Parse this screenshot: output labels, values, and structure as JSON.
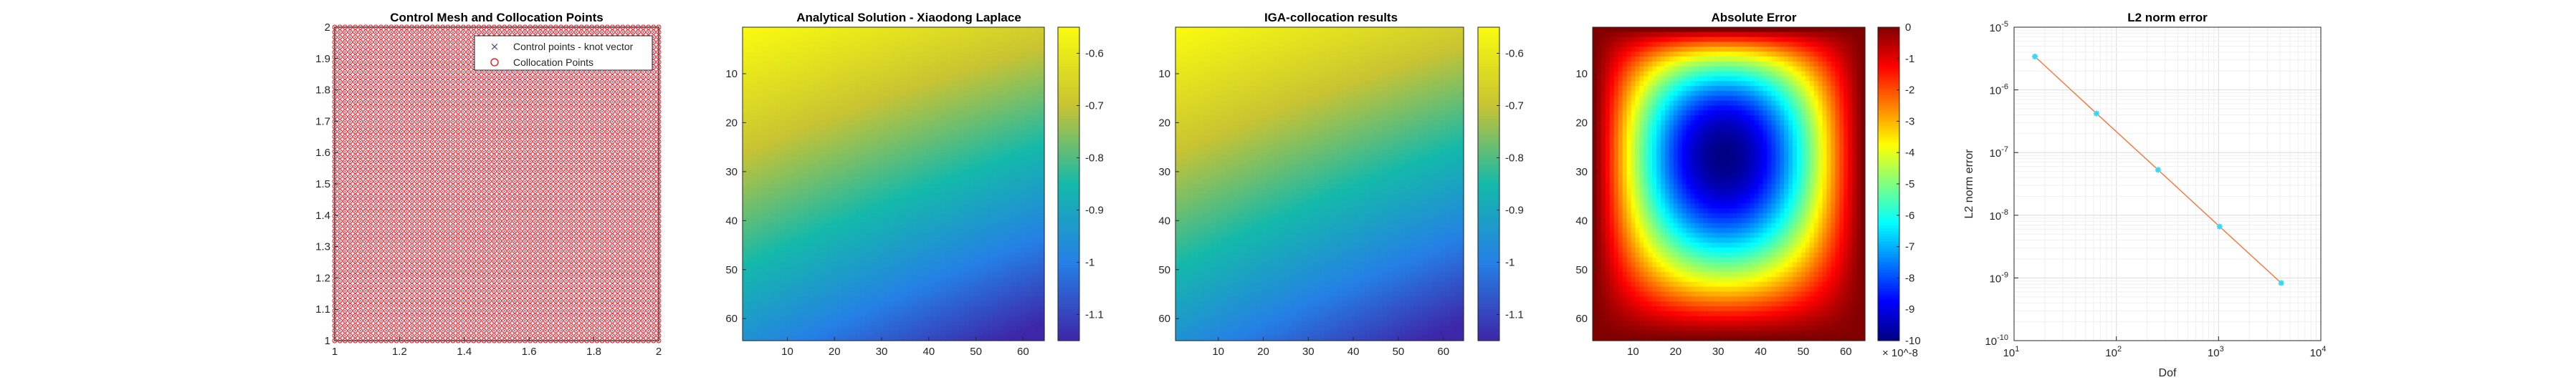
{
  "chart_data": [
    {
      "id": "mesh",
      "type": "scatter",
      "title": "Control Mesh and Collocation Points",
      "xlim": [
        1,
        2
      ],
      "ylim": [
        1,
        2
      ],
      "x_ticks": [
        "1",
        "1.2",
        "1.4",
        "1.6",
        "1.8",
        "2"
      ],
      "y_ticks": [
        "1",
        "1.1",
        "1.2",
        "1.3",
        "1.4",
        "1.5",
        "1.6",
        "1.7",
        "1.8",
        "1.9",
        "2"
      ],
      "grid_points_per_side": 64,
      "series": [
        {
          "name": "Control points - knot vector",
          "marker": "x",
          "color": "#4a4a8a"
        },
        {
          "name": "Collocation Points",
          "marker": "o",
          "color": "#ff0000"
        }
      ],
      "legend": "top-right"
    },
    {
      "id": "analytical",
      "type": "heatmap",
      "title": "Analytical Solution - Xiaodong Laplace",
      "colormap": "parula",
      "grid_size": 64,
      "x_ticks": [
        "10",
        "20",
        "30",
        "40",
        "50",
        "60"
      ],
      "y_ticks": [
        "10",
        "20",
        "30",
        "40",
        "50",
        "60"
      ],
      "clim": [
        -1.15,
        -0.55
      ],
      "colorbar_ticks": [
        "-0.6",
        "-0.7",
        "-0.8",
        "-0.9",
        "-1",
        "-1.1"
      ]
    },
    {
      "id": "iga",
      "type": "heatmap",
      "title": "IGA-collocation results",
      "colormap": "parula",
      "grid_size": 64,
      "x_ticks": [
        "10",
        "20",
        "30",
        "40",
        "50",
        "60"
      ],
      "y_ticks": [
        "10",
        "20",
        "30",
        "40",
        "50",
        "60"
      ],
      "clim": [
        -1.15,
        -0.55
      ],
      "colorbar_ticks": [
        "-0.6",
        "-0.7",
        "-0.8",
        "-0.9",
        "-1",
        "-1.1"
      ]
    },
    {
      "id": "error",
      "type": "heatmap",
      "title": "Absolute Error",
      "colormap": "jet",
      "grid_size": 64,
      "x_ticks": [
        "10",
        "20",
        "30",
        "40",
        "50",
        "60"
      ],
      "y_ticks": [
        "10",
        "20",
        "30",
        "40",
        "50",
        "60"
      ],
      "clim": [
        -10,
        0
      ],
      "colorbar_ticks": [
        "0",
        "-1",
        "-2",
        "-3",
        "-4",
        "-5",
        "-6",
        "-7",
        "-8",
        "-9",
        "-10"
      ],
      "colorbar_exponent": "× 10^-8"
    },
    {
      "id": "l2",
      "type": "line",
      "title": "L2 norm error",
      "xlabel": "Dof",
      "ylabel": "L2 norm error",
      "xscale": "log",
      "yscale": "log",
      "xlim": [
        10,
        10000
      ],
      "ylim": [
        1e-10,
        1e-05
      ],
      "x_ticks": [
        {
          "base": "10",
          "exp": "1"
        },
        {
          "base": "10",
          "exp": "2"
        },
        {
          "base": "10",
          "exp": "3"
        },
        {
          "base": "10",
          "exp": "4"
        }
      ],
      "y_ticks": [
        {
          "base": "10",
          "exp": "-10"
        },
        {
          "base": "10",
          "exp": "-9"
        },
        {
          "base": "10",
          "exp": "-8"
        },
        {
          "base": "10",
          "exp": "-7"
        },
        {
          "base": "10",
          "exp": "-6"
        },
        {
          "base": "10",
          "exp": "-5"
        }
      ],
      "grid": true,
      "series": [
        {
          "x": [
            16,
            64,
            256,
            1024,
            4096
          ],
          "y": [
            3.4e-06,
            4.2e-07,
            5.3e-08,
            6.6e-09,
            8.3e-10
          ],
          "line_color": "#ff6a2a",
          "marker_color": "#3ad8f0"
        }
      ]
    }
  ]
}
